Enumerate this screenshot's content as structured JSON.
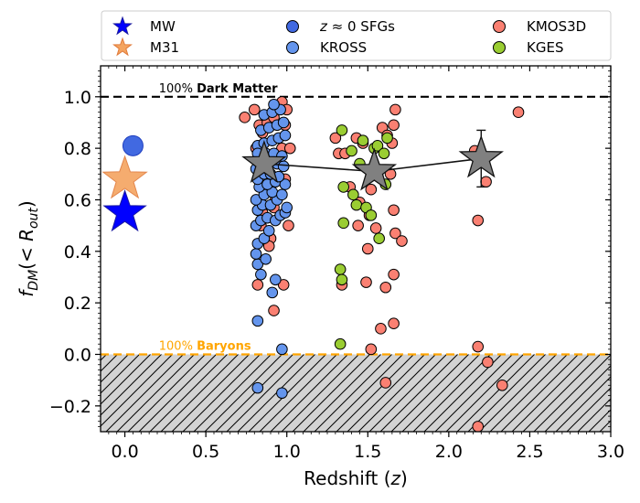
{
  "chart_data": {
    "type": "scatter",
    "xlabel": "Redshift (z)",
    "xlabel_text": "Redshift (",
    "xlabel_var": "z",
    "xlabel_close": ")",
    "ylabel": "f_DM(< R_out)",
    "xlim": [
      -0.15,
      3.0
    ],
    "ylim": [
      -0.3,
      1.12
    ],
    "xticks": [
      0.0,
      0.5,
      1.0,
      1.5,
      2.0,
      2.5,
      3.0
    ],
    "xtick_labels": [
      "0.0",
      "0.5",
      "1.0",
      "1.5",
      "2.0",
      "2.5",
      "3.0"
    ],
    "yticks": [
      -0.2,
      0.0,
      0.2,
      0.4,
      0.6,
      0.8,
      1.0
    ],
    "ytick_labels": [
      "−0.2",
      "0.0",
      "0.2",
      "0.4",
      "0.6",
      "0.8",
      "1.0"
    ],
    "reference_lines": [
      {
        "name": "dark-matter",
        "y": 1.0,
        "color": "#000000",
        "label_prefix": "100% ",
        "label_bold": "Dark Matter"
      },
      {
        "name": "baryons",
        "y": 0.0,
        "color": "#FFA500",
        "label_prefix": "100% ",
        "label_bold": "Baryons"
      }
    ],
    "hatched_region": {
      "y_from": -0.3,
      "y_to": 0.0,
      "fill": "#D3D3D3"
    },
    "legend": [
      {
        "label": "MW",
        "marker": "star",
        "color": "#0000FF"
      },
      {
        "label": "z ≈ 0 SFGs",
        "label_var": "z",
        "label_rest": " ≈ 0 SFGs",
        "marker": "circle",
        "color": "#4169E1"
      },
      {
        "label": "KMOS3D",
        "marker": "circle",
        "color": "#FA8072"
      },
      {
        "label": "M31",
        "marker": "star",
        "color": "#F4A460"
      },
      {
        "label": "KROSS",
        "marker": "circle",
        "color": "#6495ED"
      },
      {
        "label": "KGES",
        "marker": "circle",
        "color": "#9ACD32"
      }
    ],
    "series": [
      {
        "name": "MW",
        "marker": "star",
        "color": "#0000FF",
        "points": [
          [
            0.0,
            0.55
          ]
        ]
      },
      {
        "name": "M31",
        "marker": "star",
        "color": "#F4A460",
        "points": [
          [
            0.0,
            0.68
          ]
        ]
      },
      {
        "name": "z ≈ 0 SFGs",
        "marker": "circle",
        "color": "#4169E1",
        "points": [
          [
            0.05,
            0.81
          ]
        ]
      },
      {
        "name": "KROSS",
        "marker": "circle",
        "color": "#6495ED",
        "points": [
          [
            0.82,
            0.13
          ],
          [
            0.82,
            -0.13
          ],
          [
            0.97,
            -0.15
          ],
          [
            0.97,
            0.02
          ],
          [
            0.91,
            0.24
          ],
          [
            0.93,
            0.29
          ],
          [
            0.84,
            0.31
          ],
          [
            0.82,
            0.35
          ],
          [
            0.81,
            0.39
          ],
          [
            0.87,
            0.37
          ],
          [
            0.82,
            0.43
          ],
          [
            0.86,
            0.45
          ],
          [
            0.89,
            0.48
          ],
          [
            0.81,
            0.5
          ],
          [
            0.84,
            0.52
          ],
          [
            0.88,
            0.53
          ],
          [
            0.93,
            0.52
          ],
          [
            0.96,
            0.54
          ],
          [
            0.99,
            0.55
          ],
          [
            1.0,
            0.57
          ],
          [
            0.82,
            0.56
          ],
          [
            0.85,
            0.58
          ],
          [
            0.9,
            0.58
          ],
          [
            0.94,
            0.6
          ],
          [
            0.81,
            0.6
          ],
          [
            0.86,
            0.62
          ],
          [
            0.91,
            0.63
          ],
          [
            0.97,
            0.62
          ],
          [
            0.83,
            0.65
          ],
          [
            0.88,
            0.66
          ],
          [
            0.93,
            0.67
          ],
          [
            0.99,
            0.66
          ],
          [
            0.82,
            0.68
          ],
          [
            0.86,
            0.7
          ],
          [
            0.9,
            0.7
          ],
          [
            0.95,
            0.69
          ],
          [
            0.81,
            0.72
          ],
          [
            0.85,
            0.74
          ],
          [
            0.89,
            0.75
          ],
          [
            0.94,
            0.74
          ],
          [
            0.98,
            0.73
          ],
          [
            0.83,
            0.77
          ],
          [
            0.87,
            0.78
          ],
          [
            0.92,
            0.78
          ],
          [
            0.97,
            0.77
          ],
          [
            0.82,
            0.81
          ],
          [
            0.86,
            0.82
          ],
          [
            0.91,
            0.83
          ],
          [
            0.95,
            0.84
          ],
          [
            0.99,
            0.85
          ],
          [
            0.84,
            0.87
          ],
          [
            0.89,
            0.88
          ],
          [
            0.94,
            0.89
          ],
          [
            0.98,
            0.9
          ],
          [
            0.86,
            0.93
          ],
          [
            0.91,
            0.94
          ],
          [
            0.96,
            0.95
          ],
          [
            0.92,
            0.97
          ],
          [
            0.82,
            0.78
          ],
          [
            0.88,
            0.72
          ]
        ]
      },
      {
        "name": "KMOS3D",
        "marker": "circle",
        "color": "#FA8072",
        "points": [
          [
            0.74,
            0.92
          ],
          [
            0.8,
            0.95
          ],
          [
            0.83,
            0.89
          ],
          [
            0.81,
            0.8
          ],
          [
            0.85,
            0.86
          ],
          [
            0.88,
            0.9
          ],
          [
            0.92,
            0.92
          ],
          [
            0.97,
            0.98
          ],
          [
            0.99,
            0.89
          ],
          [
            1.0,
            0.95
          ],
          [
            0.97,
            0.8
          ],
          [
            1.02,
            0.8
          ],
          [
            0.99,
            0.68
          ],
          [
            1.01,
            0.5
          ],
          [
            0.93,
            0.6
          ],
          [
            0.92,
            0.57
          ],
          [
            0.9,
            0.45
          ],
          [
            0.89,
            0.42
          ],
          [
            0.85,
            0.55
          ],
          [
            0.82,
            0.27
          ],
          [
            0.92,
            0.17
          ],
          [
            0.98,
            0.27
          ],
          [
            0.84,
            0.5
          ],
          [
            1.32,
            0.78
          ],
          [
            1.36,
            0.78
          ],
          [
            1.39,
            0.65
          ],
          [
            1.43,
            0.84
          ],
          [
            1.47,
            0.82
          ],
          [
            1.44,
            0.5
          ],
          [
            1.52,
            0.64
          ],
          [
            1.5,
            0.41
          ],
          [
            1.51,
            0.54
          ],
          [
            1.45,
            0.59
          ],
          [
            1.55,
            0.49
          ],
          [
            1.59,
            0.88
          ],
          [
            1.62,
            0.85
          ],
          [
            1.67,
            0.95
          ],
          [
            1.66,
            0.89
          ],
          [
            1.65,
            0.82
          ],
          [
            1.64,
            0.7
          ],
          [
            1.66,
            0.56
          ],
          [
            1.67,
            0.47
          ],
          [
            1.71,
            0.44
          ],
          [
            1.66,
            0.31
          ],
          [
            1.61,
            0.26
          ],
          [
            1.49,
            0.28
          ],
          [
            1.34,
            0.27
          ],
          [
            1.58,
            0.1
          ],
          [
            1.66,
            0.12
          ],
          [
            1.52,
            0.02
          ],
          [
            1.61,
            -0.11
          ],
          [
            2.16,
            0.79
          ],
          [
            2.23,
            0.67
          ],
          [
            2.18,
            0.52
          ],
          [
            2.43,
            0.94
          ],
          [
            2.24,
            -0.03
          ],
          [
            2.18,
            0.03
          ],
          [
            2.33,
            -0.12
          ],
          [
            2.18,
            -0.28
          ],
          [
            1.3,
            0.84
          ]
        ]
      },
      {
        "name": "KGES",
        "marker": "circle",
        "color": "#9ACD32",
        "points": [
          [
            1.34,
            0.87
          ],
          [
            1.4,
            0.79
          ],
          [
            1.47,
            0.83
          ],
          [
            1.54,
            0.8
          ],
          [
            1.56,
            0.81
          ],
          [
            1.62,
            0.84
          ],
          [
            1.6,
            0.78
          ],
          [
            1.45,
            0.74
          ],
          [
            1.35,
            0.65
          ],
          [
            1.43,
            0.58
          ],
          [
            1.49,
            0.57
          ],
          [
            1.41,
            0.62
          ],
          [
            1.52,
            0.54
          ],
          [
            1.35,
            0.51
          ],
          [
            1.57,
            0.45
          ],
          [
            1.33,
            0.33
          ],
          [
            1.34,
            0.29
          ],
          [
            1.33,
            0.04
          ],
          [
            1.61,
            0.66
          ],
          [
            1.55,
            0.71
          ]
        ]
      },
      {
        "name": "median",
        "marker": "star",
        "color": "#808080",
        "points": [
          [
            0.86,
            0.74
          ],
          [
            1.54,
            0.71
          ],
          [
            2.2,
            0.76
          ]
        ],
        "y_error": [
          0.0,
          0.0,
          0.11
        ]
      }
    ]
  }
}
